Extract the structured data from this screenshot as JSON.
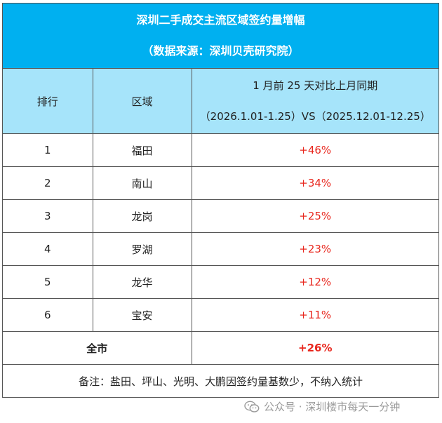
{
  "title": "深圳二手成交主流区域签约量增幅",
  "source": "（数据来源：深圳贝壳研究院）",
  "header": {
    "rank": "排行",
    "region": "区域",
    "compare_line1": "1 月前 25 天对比上月同期",
    "compare_line2": "（2026.1.01-1.25）VS（2025.12.01-12.25）"
  },
  "rows": [
    {
      "rank": "1",
      "region": "福田",
      "change": "+46%"
    },
    {
      "rank": "2",
      "region": "南山",
      "change": "+34%"
    },
    {
      "rank": "3",
      "region": "龙岗",
      "change": "+25%"
    },
    {
      "rank": "4",
      "region": "罗湖",
      "change": "+23%"
    },
    {
      "rank": "5",
      "region": "龙华",
      "change": "+12%"
    },
    {
      "rank": "6",
      "region": "宝安",
      "change": "+11%"
    }
  ],
  "total": {
    "label": "全市",
    "change": "+26%"
  },
  "note": "备注：盐田、坪山、光明、大鹏因签约量基数少，不纳入统计",
  "watermark": "公众号 · 深圳楼市每天一分钟",
  "colors": {
    "title_bg": "#00B0F0",
    "header_bg": "#A6E4FA",
    "positive": "#E8271E"
  },
  "icons": {
    "watermark": "wechat-icon"
  }
}
